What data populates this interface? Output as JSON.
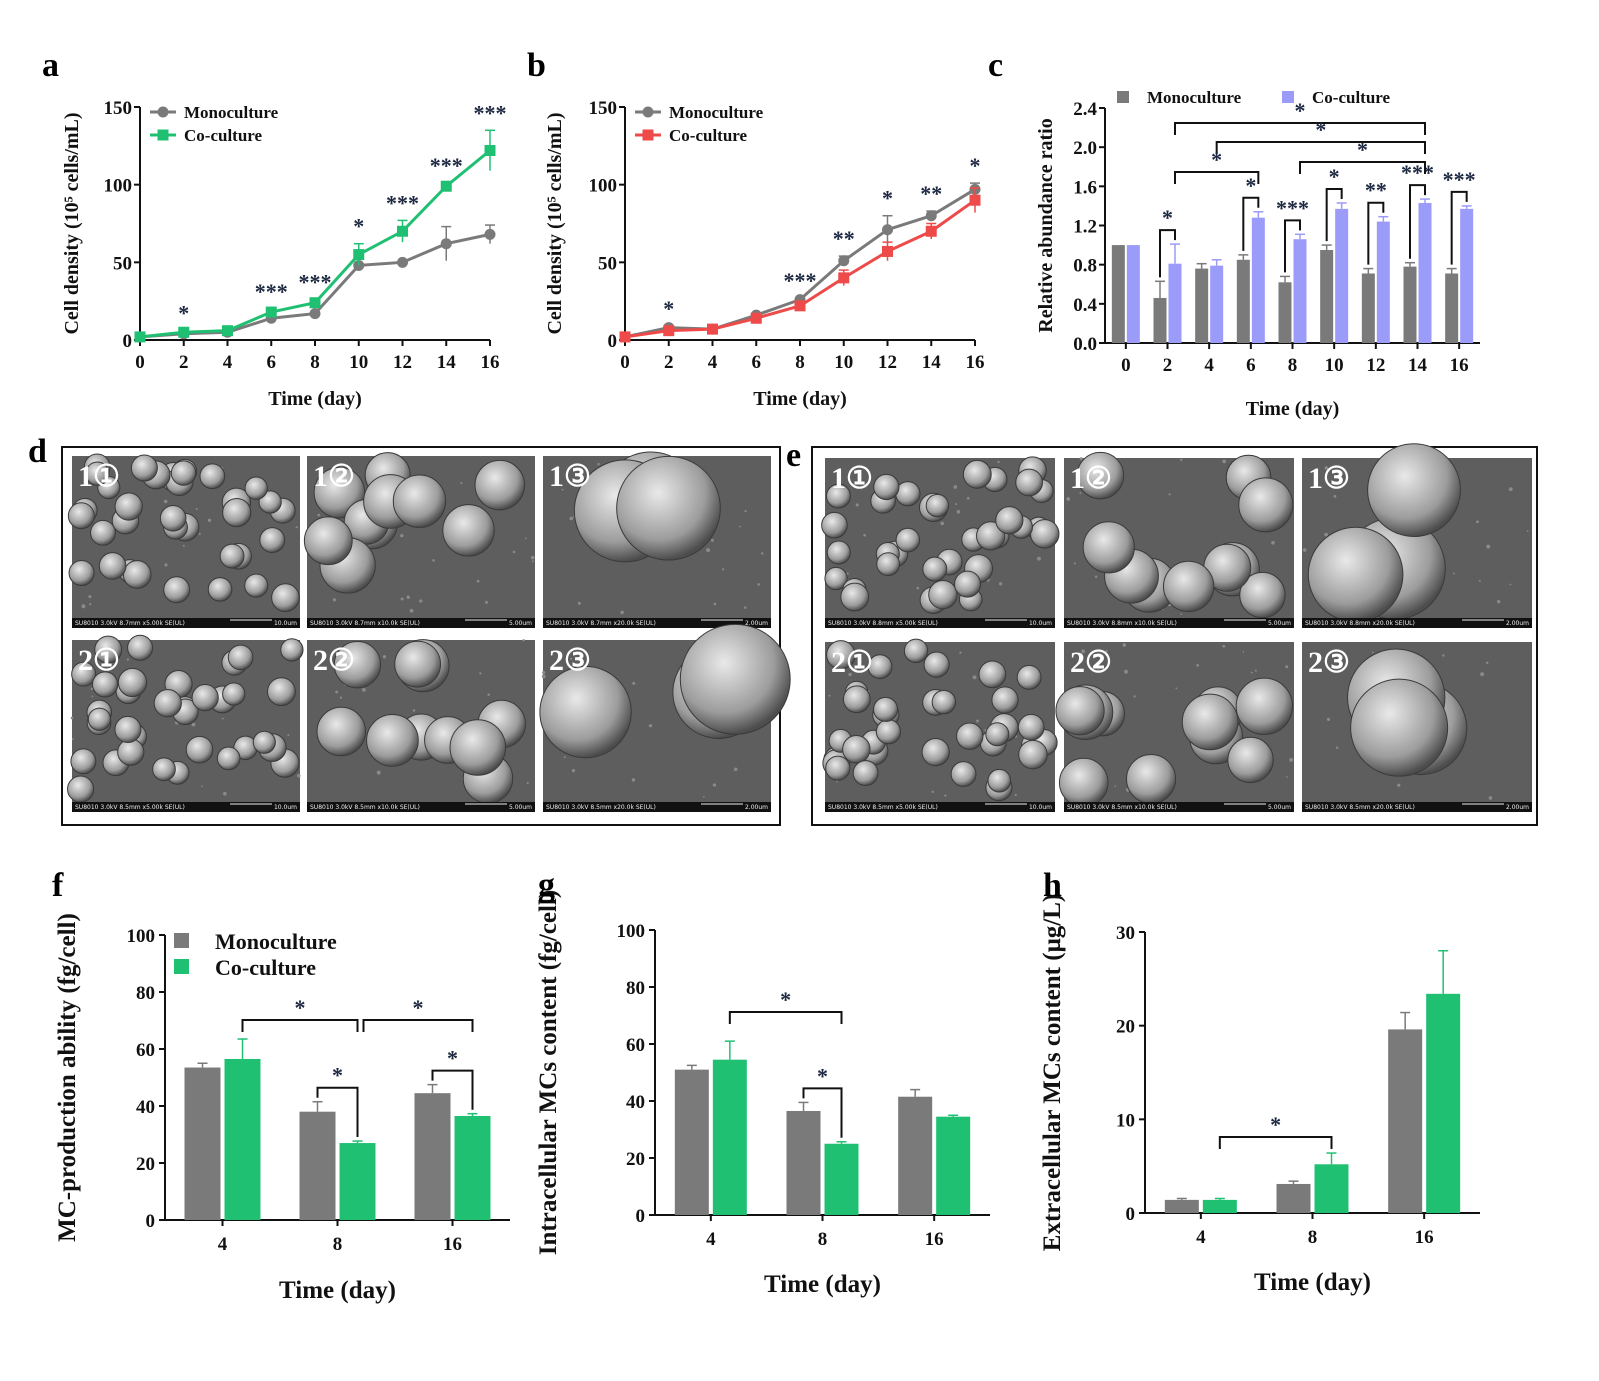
{
  "colors": {
    "mono": "#7a7a7a",
    "coculture_green": "#20c073",
    "coculture_red": "#ee4a4a",
    "coculture_purple": "#9b9bfa",
    "star": "#1c2740"
  },
  "panel_letters": [
    "a",
    "b",
    "c",
    "d",
    "e",
    "f",
    "g",
    "h"
  ],
  "chart_data": [
    {
      "id": "a",
      "type": "line",
      "ylabel": "Cell density (10⁵ cells/mL)",
      "xlabel": "Time (day)",
      "x": [
        0,
        2,
        4,
        6,
        8,
        10,
        12,
        14,
        16
      ],
      "ylim": [
        0,
        150
      ],
      "yticks": [
        0,
        50,
        100,
        150
      ],
      "xticks": [
        0,
        2,
        4,
        6,
        8,
        10,
        12,
        14,
        16
      ],
      "series": [
        {
          "name": "Monoculture",
          "color": "#7a7a7a",
          "marker": "circle",
          "values": [
            2,
            4,
            5,
            14,
            17,
            48,
            50,
            62,
            68
          ],
          "err": [
            1,
            1,
            1,
            1,
            1,
            1,
            1,
            11,
            6
          ]
        },
        {
          "name": "Co-culture",
          "color": "#20c073",
          "marker": "square",
          "values": [
            2,
            5,
            6,
            18,
            24,
            55,
            70,
            99,
            122
          ],
          "err": [
            1,
            1,
            1,
            2,
            2,
            7,
            7,
            2,
            13
          ]
        }
      ],
      "significance": [
        {
          "x": 2,
          "label": "*"
        },
        {
          "x": 6,
          "label": "***"
        },
        {
          "x": 8,
          "label": "***"
        },
        {
          "x": 10,
          "label": "*"
        },
        {
          "x": 12,
          "label": "***"
        },
        {
          "x": 14,
          "label": "***"
        },
        {
          "x": 16,
          "label": "***"
        }
      ]
    },
    {
      "id": "b",
      "type": "line",
      "ylabel": "Cell density (10⁵ cells/mL)",
      "xlabel": "Time (day)",
      "x": [
        0,
        2,
        4,
        6,
        8,
        10,
        12,
        14,
        16
      ],
      "ylim": [
        0,
        150
      ],
      "yticks": [
        0,
        50,
        100,
        150
      ],
      "xticks": [
        0,
        2,
        4,
        6,
        8,
        10,
        12,
        14,
        16
      ],
      "series": [
        {
          "name": "Monoculture",
          "color": "#7a7a7a",
          "marker": "circle",
          "values": [
            2,
            8,
            7,
            16,
            26,
            51,
            71,
            80,
            97
          ],
          "err": [
            1,
            1,
            1,
            1,
            1,
            3,
            9,
            3,
            4
          ]
        },
        {
          "name": "Co-culture",
          "color": "#ee4a4a",
          "marker": "square",
          "values": [
            2,
            6,
            7,
            14,
            22,
            40,
            57,
            70,
            90
          ],
          "err": [
            1,
            1,
            1,
            1,
            2,
            5,
            6,
            5,
            8
          ]
        }
      ],
      "significance": [
        {
          "x": 2,
          "label": "*"
        },
        {
          "x": 8,
          "label": "***"
        },
        {
          "x": 10,
          "label": "**"
        },
        {
          "x": 12,
          "label": "*"
        },
        {
          "x": 14,
          "label": "**"
        },
        {
          "x": 16,
          "label": "*"
        }
      ]
    },
    {
      "id": "c",
      "type": "bar",
      "ylabel": "Relative abundance ratio",
      "xlabel": "Time (day)",
      "categories": [
        "0",
        "2",
        "4",
        "6",
        "8",
        "10",
        "12",
        "14",
        "16"
      ],
      "ylim": [
        0,
        2.4
      ],
      "yticks": [
        "0.0",
        "0.4",
        "0.8",
        "1.2",
        "1.6",
        "2.0",
        "2.4"
      ],
      "series": [
        {
          "name": "Monoculture",
          "color": "#7a7a7a",
          "values": [
            1.0,
            0.46,
            0.76,
            0.85,
            0.62,
            0.95,
            0.71,
            0.78,
            0.71
          ],
          "err": [
            0,
            0.17,
            0.05,
            0.05,
            0.06,
            0.05,
            0.05,
            0.04,
            0.05
          ]
        },
        {
          "name": "Co-culture",
          "color": "#9b9bfa",
          "values": [
            1.0,
            0.81,
            0.79,
            1.28,
            1.06,
            1.37,
            1.24,
            1.43,
            1.37
          ],
          "err": [
            0,
            0.2,
            0.06,
            0.06,
            0.05,
            0.06,
            0.05,
            0.04,
            0.03
          ]
        }
      ],
      "pair_significance": [
        {
          "category": "2",
          "label": "*"
        },
        {
          "category": "6",
          "label": "*"
        },
        {
          "category": "8",
          "label": "***"
        },
        {
          "category": "10",
          "label": "*"
        },
        {
          "category": "12",
          "label": "**"
        },
        {
          "category": "14",
          "label": "***"
        },
        {
          "category": "16",
          "label": "***"
        }
      ],
      "cross_significance": [
        {
          "from": "2",
          "to": "14",
          "label": "*"
        },
        {
          "from": "4",
          "to": "14",
          "label": "*"
        },
        {
          "from": "2",
          "to": "6",
          "label": "*"
        },
        {
          "from": "8",
          "to": "14",
          "label": "*"
        }
      ]
    },
    {
      "id": "f",
      "type": "bar",
      "ylabel": "MC-production ability (fg/cell)",
      "xlabel": "Time (day)",
      "categories": [
        "4",
        "8",
        "16"
      ],
      "ylim": [
        0,
        100
      ],
      "yticks": [
        "0",
        "20",
        "40",
        "60",
        "80",
        "100"
      ],
      "series": [
        {
          "name": "Monoculture",
          "color": "#7a7a7a",
          "values": [
            53.5,
            38,
            44.5
          ],
          "err": [
            1.5,
            3.5,
            3
          ]
        },
        {
          "name": "Co-culture",
          "color": "#20c073",
          "values": [
            56.5,
            27,
            36.5
          ],
          "err": [
            7,
            0.7,
            0.8
          ]
        }
      ],
      "pair_significance": [
        {
          "category": "8",
          "label": "*"
        },
        {
          "category": "16",
          "label": "*"
        }
      ],
      "cross_significance": [
        {
          "from": "4",
          "to": "8",
          "label": "*"
        },
        {
          "from": "8",
          "to": "16",
          "label": "*"
        }
      ]
    },
    {
      "id": "g",
      "type": "bar",
      "ylabel": "Intracellular MCs content (fg/cell)",
      "xlabel": "Time (day)",
      "categories": [
        "4",
        "8",
        "16"
      ],
      "ylim": [
        0,
        100
      ],
      "yticks": [
        "0",
        "20",
        "40",
        "60",
        "80",
        "100"
      ],
      "series": [
        {
          "name": "Monoculture",
          "color": "#7a7a7a",
          "values": [
            51,
            36.5,
            41.5
          ],
          "err": [
            1.5,
            3,
            2.5
          ]
        },
        {
          "name": "Co-culture",
          "color": "#20c073",
          "values": [
            54.5,
            25,
            34.5
          ],
          "err": [
            6.5,
            0.7,
            0.5
          ]
        }
      ],
      "pair_significance": [
        {
          "category": "8",
          "label": "*"
        }
      ],
      "cross_significance": [
        {
          "from": "4",
          "to": "8",
          "label": "*"
        }
      ]
    },
    {
      "id": "h",
      "type": "bar",
      "ylabel": "Extracellular MCs content (μg/L)",
      "xlabel": "Time (day)",
      "categories": [
        "4",
        "8",
        "16"
      ],
      "ylim": [
        0,
        30
      ],
      "yticks": [
        "0",
        "10",
        "20",
        "30"
      ],
      "series": [
        {
          "name": "Monoculture",
          "color": "#7a7a7a",
          "values": [
            1.4,
            3.1,
            19.6
          ],
          "err": [
            0.15,
            0.3,
            1.8
          ]
        },
        {
          "name": "Co-culture",
          "color": "#20c073",
          "values": [
            1.4,
            5.2,
            23.4
          ],
          "err": [
            0.15,
            1.2,
            4.6
          ]
        }
      ],
      "cross_significance": [
        {
          "from": "4",
          "to": "8",
          "label": "*"
        }
      ]
    }
  ],
  "sem_panels": {
    "d": {
      "tiles": [
        {
          "label": "1①",
          "caption": "SU8010 3.0kV 8.7mm x5.00k SE(UL)",
          "scale": "10.0um"
        },
        {
          "label": "1②",
          "caption": "SU8010 3.0kV 8.7mm x10.0k SE(UL)",
          "scale": "5.00um"
        },
        {
          "label": "1③",
          "caption": "SU8010 3.0kV 8.7mm x20.0k SE(UL)",
          "scale": "2.00um"
        },
        {
          "label": "2①",
          "caption": "SU8010 3.0kV 8.5mm x5.00k SE(UL)",
          "scale": "10.0um"
        },
        {
          "label": "2②",
          "caption": "SU8010 3.0kV 8.5mm x10.0k SE(UL)",
          "scale": "5.00um"
        },
        {
          "label": "2③",
          "caption": "SU8010 3.0kV 8.5mm x20.0k SE(UL)",
          "scale": "2.00um"
        }
      ]
    },
    "e": {
      "tiles": [
        {
          "label": "1①",
          "caption": "SU8010 3.0kV 8.8mm x5.00k SE(UL)",
          "scale": "10.0um"
        },
        {
          "label": "1②",
          "caption": "SU8010 3.0kV 8.8mm x10.0k SE(UL)",
          "scale": "5.00um"
        },
        {
          "label": "1③",
          "caption": "SU8010 3.0kV 8.8mm x20.0k SE(UL)",
          "scale": "2.00um"
        },
        {
          "label": "2①",
          "caption": "SU8010 3.0kV 8.5mm x5.00k SE(UL)",
          "scale": "10.0um"
        },
        {
          "label": "2②",
          "caption": "SU8010 3.0kV 8.5mm x10.0k SE(UL)",
          "scale": "5.00um"
        },
        {
          "label": "2③",
          "caption": "SU8010 3.0kV 8.5mm x20.0k SE(UL)",
          "scale": "2.00um"
        }
      ]
    }
  }
}
